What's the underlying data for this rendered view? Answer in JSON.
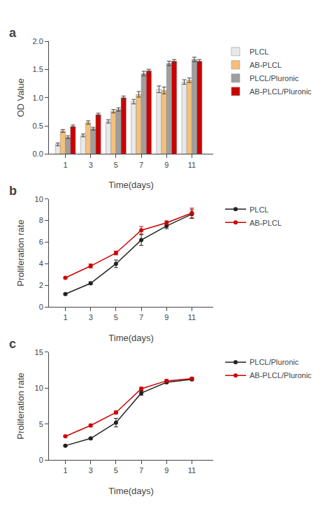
{
  "chart_data": [
    {
      "type": "bar",
      "annotations": [
        "a"
      ],
      "xlabel": "Time(days)",
      "ylabel": "OD Value",
      "x": [
        1,
        3,
        5,
        7,
        9,
        11
      ],
      "xlim": [
        -0.3,
        12.7
      ],
      "xticks": [
        1,
        3,
        5,
        7,
        9,
        11
      ],
      "ylim": [
        0,
        2.0
      ],
      "yticks": [
        {
          "value": 0.0,
          "label": "0.0"
        },
        0.5,
        {
          "value": 1.0,
          "label": "1.0"
        },
        1.5,
        {
          "value": 2.0,
          "label": "2.0"
        }
      ],
      "grid": false,
      "legend": "right",
      "series": [
        {
          "name": "PLCL",
          "color": "#e8e8e8",
          "values": [
            0.17,
            0.33,
            0.58,
            0.93,
            1.15,
            1.28
          ],
          "errors": [
            0.025,
            0.025,
            0.03,
            0.04,
            0.06,
            0.04
          ]
        },
        {
          "name": "AB-PLCL",
          "color": "#f5c07a",
          "values": [
            0.41,
            0.56,
            0.76,
            1.06,
            1.13,
            1.31
          ],
          "errors": [
            0.025,
            0.03,
            0.03,
            0.05,
            0.06,
            0.04
          ]
        },
        {
          "name": "PLCL/Pluronic",
          "color": "#9e9e9e",
          "values": [
            0.3,
            0.45,
            0.79,
            1.43,
            1.61,
            1.68
          ],
          "errors": [
            0.025,
            0.025,
            0.03,
            0.04,
            0.04,
            0.04
          ]
        },
        {
          "name": "AB-PLCL/Pluronic",
          "color": "#cc0000",
          "values": [
            0.49,
            0.7,
            1.0,
            1.48,
            1.65,
            1.65
          ],
          "errors": [
            0.025,
            0.025,
            0.03,
            0.025,
            0.03,
            0.03
          ]
        }
      ]
    },
    {
      "type": "line",
      "annotations": [
        "b"
      ],
      "xlabel": "Time(days)",
      "ylabel": "Proliferation rate",
      "x": [
        1,
        3,
        5,
        7,
        9,
        11
      ],
      "xlim": [
        -0.3,
        12.7
      ],
      "xticks": [
        1,
        3,
        5,
        7,
        9,
        11
      ],
      "ylim": [
        0,
        10
      ],
      "yticks": [
        0,
        2,
        4,
        6,
        8,
        10
      ],
      "grid": false,
      "legend": "right",
      "marker": "circle",
      "series": [
        {
          "name": "PLCL",
          "color": "#222222",
          "values": [
            1.2,
            2.2,
            4.0,
            6.2,
            7.5,
            8.6
          ],
          "errors": [
            0.08,
            0.12,
            0.35,
            0.5,
            0.25,
            0.4
          ]
        },
        {
          "name": "AB-PLCL",
          "color": "#cc0000",
          "values": [
            2.7,
            3.8,
            5.0,
            7.1,
            7.8,
            8.7
          ],
          "errors": [
            0.08,
            0.18,
            0.18,
            0.35,
            0.18,
            0.45
          ]
        }
      ]
    },
    {
      "type": "line",
      "annotations": [
        "c"
      ],
      "xlabel": "Time(days)",
      "ylabel": "Proliferation rate",
      "x": [
        1,
        3,
        5,
        7,
        9,
        11
      ],
      "xlim": [
        -0.3,
        12.7
      ],
      "xticks": [
        1,
        3,
        5,
        7,
        9,
        11
      ],
      "ylim": [
        0,
        15
      ],
      "yticks": [
        0,
        5,
        10,
        15
      ],
      "grid": false,
      "legend": "right",
      "marker": "circle",
      "series": [
        {
          "name": "PLCL/Pluronic",
          "color": "#222222",
          "values": [
            2.0,
            3.0,
            5.2,
            9.3,
            10.8,
            11.2
          ],
          "errors": [
            0.08,
            0.12,
            0.6,
            0.3,
            0.18,
            0.18
          ]
        },
        {
          "name": "AB-PLCL/Pluronic",
          "color": "#cc0000",
          "values": [
            3.3,
            4.8,
            6.6,
            9.9,
            11.0,
            11.3
          ],
          "errors": [
            0.08,
            0.18,
            0.22,
            0.22,
            0.18,
            0.18
          ]
        }
      ]
    }
  ]
}
